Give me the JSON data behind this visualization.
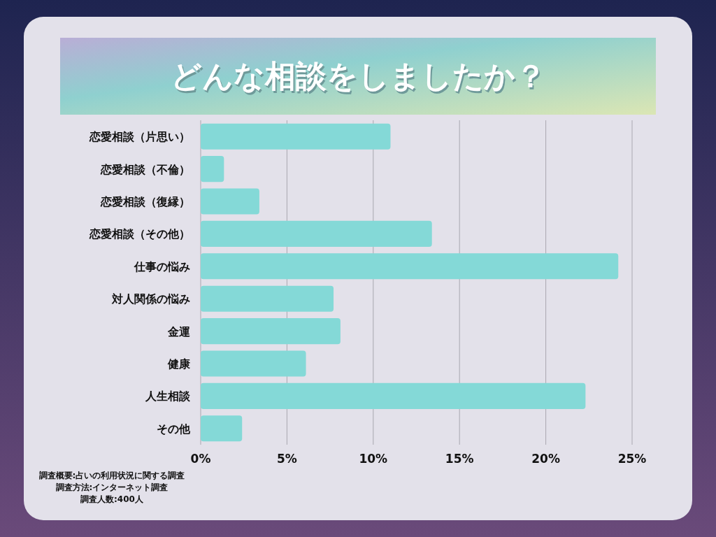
{
  "chart_data": {
    "type": "bar",
    "orientation": "horizontal",
    "title": "どんな相談をしましたか？",
    "categories": [
      "恋愛相談（片思い）",
      "恋愛相談（不倫）",
      "恋愛相談（復縁）",
      "恋愛相談（その他）",
      "仕事の悩み",
      "対人関係の悩み",
      "金運",
      "健康",
      "人生相談",
      "その他"
    ],
    "values": [
      11.0,
      1.35,
      3.4,
      13.4,
      24.2,
      7.7,
      8.1,
      6.1,
      22.3,
      2.4
    ],
    "color": "#84d9d7",
    "xlim": [
      0,
      25
    ],
    "xticks": [
      {
        "value": 0,
        "label": "0%"
      },
      {
        "value": 5,
        "label": "5%"
      },
      {
        "value": 10,
        "label": "10%"
      },
      {
        "value": 15,
        "label": "15%"
      },
      {
        "value": 20,
        "label": "20%"
      },
      {
        "value": 25,
        "label": "25%"
      }
    ],
    "grid": "x",
    "annotations": [
      "調査概要:占いの利用状況に関する調査",
      "調査方法:インターネット調査",
      "調査人数:400人"
    ]
  }
}
